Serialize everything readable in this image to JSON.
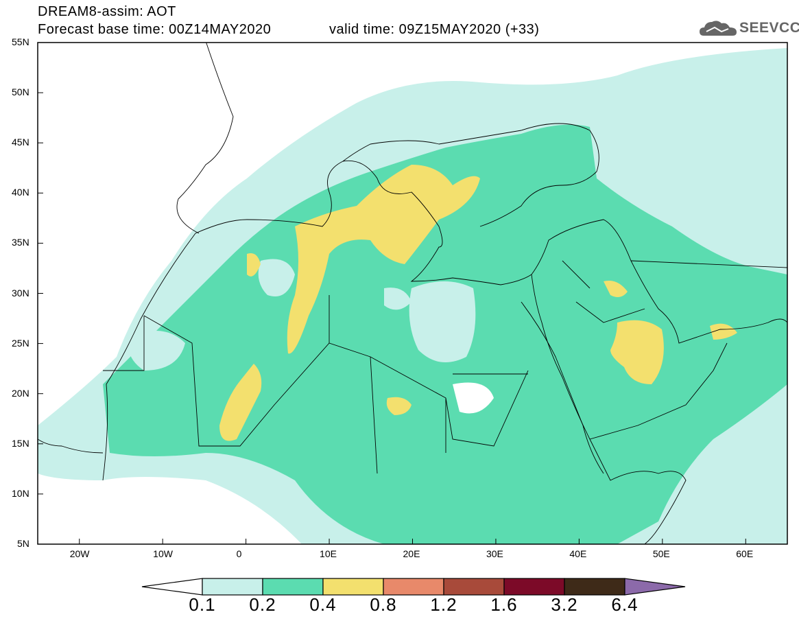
{
  "header": {
    "title": "DREAM8-assim: AOT",
    "forecast_base": "Forecast base time: 00Z14MAY2020",
    "valid_time": "valid time: 09Z15MAY2020 (+33)",
    "logo_text": "SEEVCCC"
  },
  "axes": {
    "lon_ticks": [
      "20W",
      "10W",
      "0",
      "10E",
      "20E",
      "30E",
      "40E",
      "50E",
      "60E"
    ],
    "lat_ticks": [
      "55N",
      "50N",
      "45N",
      "40N",
      "35N",
      "30N",
      "25N",
      "20N",
      "15N",
      "10N",
      "5N"
    ],
    "lon_range": [
      -25,
      65
    ],
    "lat_range": [
      5,
      55
    ]
  },
  "colorbar": {
    "labels": [
      "0.1",
      "0.2",
      "0.4",
      "0.8",
      "1.2",
      "1.6",
      "3.2",
      "6.4"
    ],
    "colors": [
      "#ffffff",
      "#c8f0ea",
      "#5bdcb0",
      "#f3e06e",
      "#e8896a",
      "#a84a3a",
      "#7c0a28",
      "#3e2a18",
      "#8c6aaa"
    ]
  },
  "legend_colors": {
    "low": "#c8f0ea",
    "mid": "#5bdcb0",
    "high": "#f3e06e"
  }
}
